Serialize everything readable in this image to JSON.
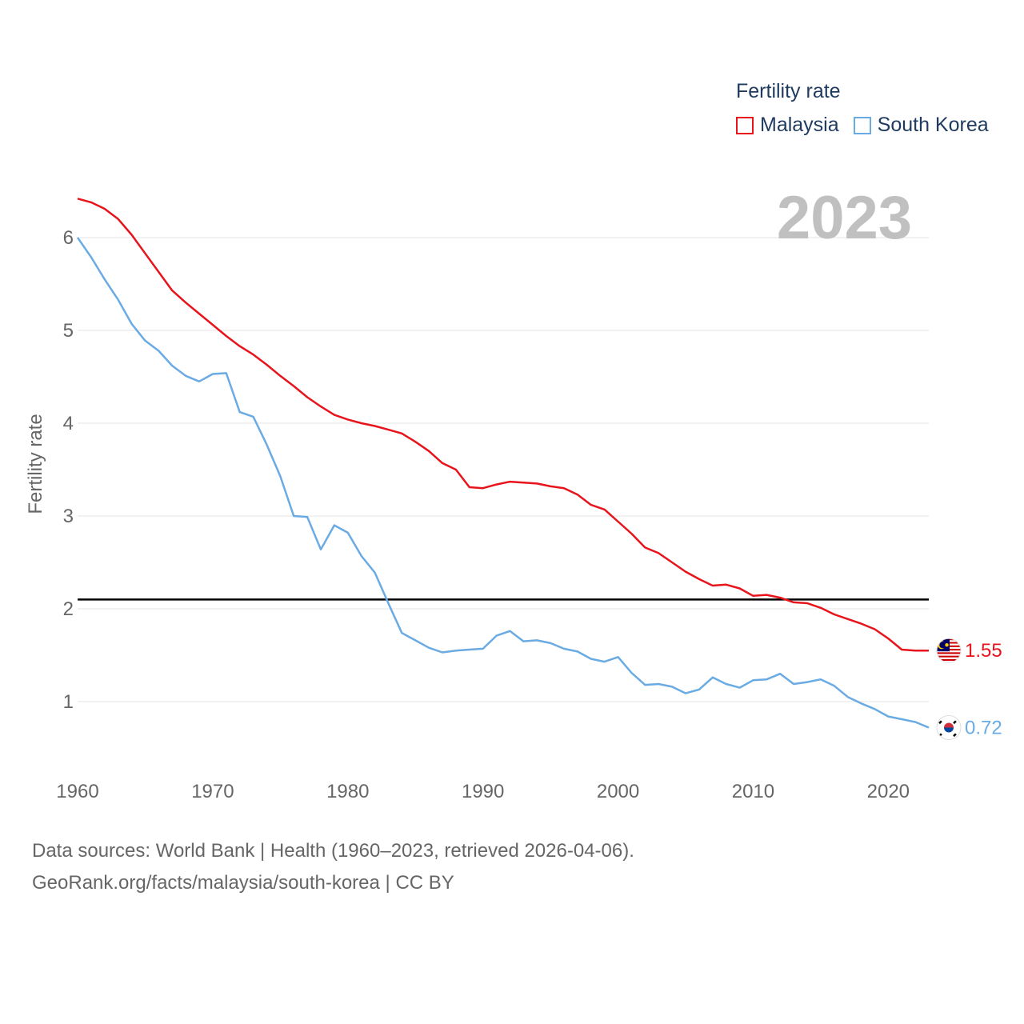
{
  "legend": {
    "title": "Fertility rate"
  },
  "year_label": "2023",
  "source": {
    "line1": "Data sources: World Bank | Health (1960–2023, retrieved 2026-04-06).",
    "line2": "GeoRank.org/facts/malaysia/south-korea | CC BY"
  },
  "colors": {
    "malaysia": "#e8141c",
    "south_korea": "#6aabe3",
    "grid": "#e6e6e6",
    "axis_text": "#666666",
    "reference_line": "#000000",
    "year_label": "#c0c0c0"
  },
  "chart_data": {
    "type": "line",
    "title": "Fertility rate",
    "xlabel": "",
    "ylabel": "Fertility rate",
    "xlim": [
      1960,
      2023
    ],
    "ylim": [
      0.5,
      6.4
    ],
    "x_ticks": [
      1960,
      1970,
      1980,
      1990,
      2000,
      2010,
      2020
    ],
    "y_ticks": [
      1,
      2,
      3,
      4,
      5,
      6
    ],
    "reference_line": 2.1,
    "grid": true,
    "legend_position": "top-right",
    "x": [
      1960,
      1961,
      1962,
      1963,
      1964,
      1965,
      1966,
      1967,
      1968,
      1969,
      1970,
      1971,
      1972,
      1973,
      1974,
      1975,
      1976,
      1977,
      1978,
      1979,
      1980,
      1981,
      1982,
      1983,
      1984,
      1985,
      1986,
      1987,
      1988,
      1989,
      1990,
      1991,
      1992,
      1993,
      1994,
      1995,
      1996,
      1997,
      1998,
      1999,
      2000,
      2001,
      2002,
      2003,
      2004,
      2005,
      2006,
      2007,
      2008,
      2009,
      2010,
      2011,
      2012,
      2013,
      2014,
      2015,
      2016,
      2017,
      2018,
      2019,
      2020,
      2021,
      2022,
      2023
    ],
    "series": [
      {
        "name": "Malaysia",
        "color": "#e8141c",
        "end_label": "1.55",
        "flag": "malaysia-flag",
        "values": [
          6.42,
          6.38,
          6.31,
          6.2,
          6.03,
          5.83,
          5.63,
          5.43,
          5.3,
          5.18,
          5.06,
          4.94,
          4.83,
          4.74,
          4.63,
          4.51,
          4.4,
          4.28,
          4.18,
          4.09,
          4.04,
          4.0,
          3.97,
          3.93,
          3.89,
          3.8,
          3.7,
          3.57,
          3.5,
          3.31,
          3.3,
          3.34,
          3.37,
          3.36,
          3.35,
          3.32,
          3.3,
          3.23,
          3.12,
          3.07,
          2.94,
          2.81,
          2.66,
          2.6,
          2.5,
          2.4,
          2.32,
          2.25,
          2.26,
          2.22,
          2.14,
          2.15,
          2.12,
          2.07,
          2.06,
          2.01,
          1.94,
          1.89,
          1.84,
          1.78,
          1.68,
          1.56,
          1.55,
          1.55
        ]
      },
      {
        "name": "South Korea",
        "color": "#6aabe3",
        "end_label": "0.72",
        "flag": "south-korea-flag",
        "values": [
          6.0,
          5.79,
          5.55,
          5.33,
          5.07,
          4.89,
          4.78,
          4.62,
          4.51,
          4.45,
          4.53,
          4.54,
          4.12,
          4.07,
          3.77,
          3.43,
          3.0,
          2.99,
          2.64,
          2.9,
          2.82,
          2.57,
          2.39,
          2.06,
          1.74,
          1.66,
          1.58,
          1.53,
          1.55,
          1.56,
          1.57,
          1.71,
          1.76,
          1.65,
          1.66,
          1.63,
          1.57,
          1.54,
          1.46,
          1.43,
          1.48,
          1.31,
          1.18,
          1.19,
          1.16,
          1.09,
          1.13,
          1.26,
          1.19,
          1.15,
          1.23,
          1.24,
          1.3,
          1.19,
          1.21,
          1.24,
          1.17,
          1.05,
          0.98,
          0.92,
          0.84,
          0.81,
          0.78,
          0.72
        ]
      }
    ]
  }
}
